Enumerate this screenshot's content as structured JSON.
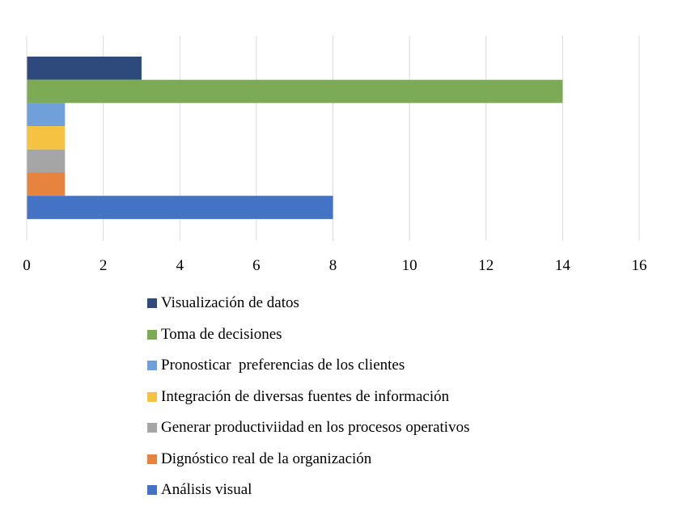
{
  "chart_data": {
    "type": "bar",
    "orientation": "horizontal",
    "title": "",
    "xlabel": "",
    "ylabel": "",
    "xlim": [
      0,
      16
    ],
    "x_ticks": [
      "0",
      "2",
      "4",
      "6",
      "8",
      "10",
      "12",
      "14",
      "16"
    ],
    "grid": true,
    "legend_position": "bottom",
    "series": [
      {
        "name": "Visualización de datos",
        "value": 3,
        "color": "#2E4A7D"
      },
      {
        "name": "Toma de decisiones",
        "value": 14,
        "color": "#7DAA55"
      },
      {
        "name": "Pronosticar  preferencias de los clientes",
        "value": 1,
        "color": "#6FA0DA"
      },
      {
        "name": "Integración de diversas fuentes de información",
        "value": 1,
        "color": "#F5C242"
      },
      {
        "name": "Generar productiviidad en los procesos operativos",
        "value": 1,
        "color": "#A5A5A5"
      },
      {
        "name": "Dignóstico real de la organización",
        "value": 1,
        "color": "#E5833F"
      },
      {
        "name": "Análisis visual",
        "value": 8,
        "color": "#4472C4"
      }
    ]
  }
}
